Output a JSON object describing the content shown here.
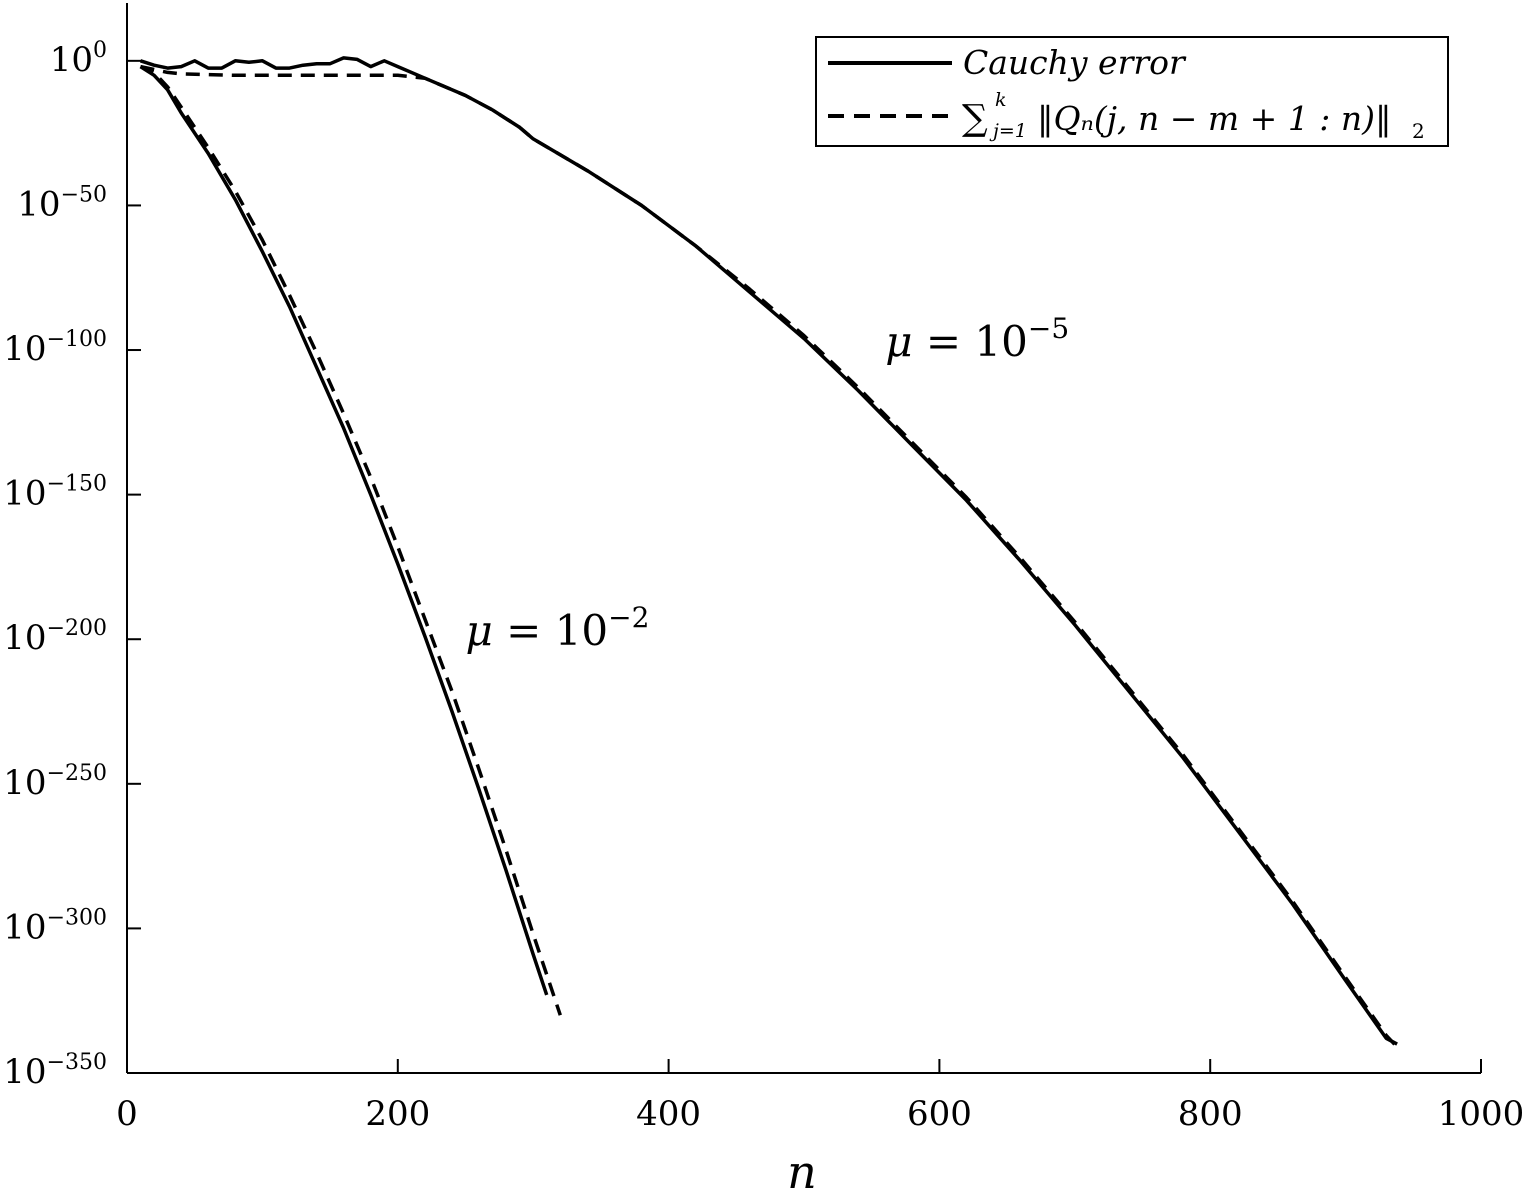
{
  "chart_data": {
    "type": "line",
    "title": "",
    "xlabel": "n",
    "ylabel": "",
    "xlim": [
      0,
      1000
    ],
    "ylim_log10": [
      -350,
      20
    ],
    "yscale": "log",
    "grid": false,
    "legend_position": "top-right",
    "x_ticks": [
      {
        "value": 0,
        "label": "0"
      },
      {
        "value": 200,
        "label": "200"
      },
      {
        "value": 400,
        "label": "400"
      },
      {
        "value": 600,
        "label": "600"
      },
      {
        "value": 800,
        "label": "800"
      },
      {
        "value": 1000,
        "label": "1000"
      }
    ],
    "y_ticks": [
      {
        "exp": 0,
        "base": "10",
        "sup": "0"
      },
      {
        "exp": -50,
        "base": "10",
        "sup": "−50"
      },
      {
        "exp": -100,
        "base": "10",
        "sup": "−100"
      },
      {
        "exp": -150,
        "base": "10",
        "sup": "−150"
      },
      {
        "exp": -200,
        "base": "10",
        "sup": "−200"
      },
      {
        "exp": -250,
        "base": "10",
        "sup": "−250"
      },
      {
        "exp": -300,
        "base": "10",
        "sup": "−300"
      },
      {
        "exp": -350,
        "base": "10",
        "sup": "−350"
      }
    ],
    "legend": {
      "solid_label": "Cauchy error",
      "dashed_label": "∑ₖ ‖Qₙ(j, n − m + 1 : n)‖₂",
      "dashed_sum_symbol": "∑",
      "dashed_sum_upper": "k",
      "dashed_sum_lower": "j=1",
      "dashed_body": "‖Qₙ(j, n − m + 1 : n)‖",
      "dashed_sub": "2"
    },
    "annotations": [
      {
        "mu": "μ",
        "eq": " = 10",
        "sup": "−5",
        "x": 560,
        "y_log10": -102
      },
      {
        "mu": "μ",
        "eq": " = 10",
        "sup": "−2",
        "x": 250,
        "y_log10": -202
      }
    ],
    "series": [
      {
        "group": "mu=1e-5",
        "style": "solid",
        "x": [
          10,
          20,
          30,
          40,
          50,
          60,
          70,
          80,
          90,
          100,
          110,
          120,
          130,
          140,
          150,
          160,
          170,
          180,
          190,
          200,
          220,
          250,
          270,
          290,
          300,
          340,
          380,
          420,
          460,
          500,
          540,
          580,
          620,
          660,
          700,
          740,
          780,
          820,
          860,
          900,
          930,
          938
        ],
        "y_log10": [
          0,
          -1.5,
          -2.5,
          -2,
          0,
          -2.5,
          -2.5,
          0,
          -0.5,
          0,
          -2.5,
          -2.5,
          -1.5,
          -1,
          -1,
          1,
          0.5,
          -2,
          0,
          -2,
          -6,
          -12,
          -17,
          -23,
          -27,
          -38,
          -50,
          -64,
          -80,
          -96,
          -114,
          -133,
          -152,
          -173,
          -195,
          -218,
          -241,
          -266,
          -291,
          -318,
          -338,
          -340
        ]
      },
      {
        "group": "mu=1e-5",
        "style": "dashed",
        "x": [
          10,
          20,
          30,
          40,
          80,
          120,
          160,
          200,
          220,
          250,
          270,
          290,
          300,
          340,
          380,
          420,
          460,
          500,
          540,
          580,
          620,
          660,
          700,
          740,
          780,
          820,
          860,
          900,
          930,
          940
        ],
        "y_log10": [
          -2,
          -3,
          -4,
          -4.5,
          -5,
          -5,
          -5,
          -5,
          -6,
          -12,
          -17,
          -23,
          -27,
          -38,
          -50,
          -64,
          -79,
          -95,
          -113,
          -132,
          -151,
          -172,
          -194,
          -217,
          -240,
          -265,
          -290,
          -317,
          -337,
          -342
        ]
      },
      {
        "group": "mu=1e-2",
        "style": "solid",
        "x": [
          10,
          20,
          30,
          40,
          60,
          80,
          100,
          120,
          140,
          160,
          180,
          200,
          220,
          240,
          260,
          280,
          300,
          310
        ],
        "y_log10": [
          -2,
          -5,
          -10,
          -18,
          -32,
          -48,
          -66,
          -85,
          -106,
          -127,
          -150,
          -174,
          -199,
          -225,
          -252,
          -280,
          -309,
          -323
        ]
      },
      {
        "group": "mu=1e-2",
        "style": "dashed",
        "x": [
          10,
          20,
          30,
          40,
          60,
          80,
          100,
          120,
          140,
          160,
          180,
          200,
          220,
          240,
          260,
          280,
          300,
          320
        ],
        "y_log10": [
          -2,
          -4,
          -9,
          -16,
          -30,
          -45,
          -62,
          -81,
          -101,
          -122,
          -144,
          -168,
          -193,
          -218,
          -245,
          -273,
          -302,
          -330
        ]
      }
    ]
  }
}
